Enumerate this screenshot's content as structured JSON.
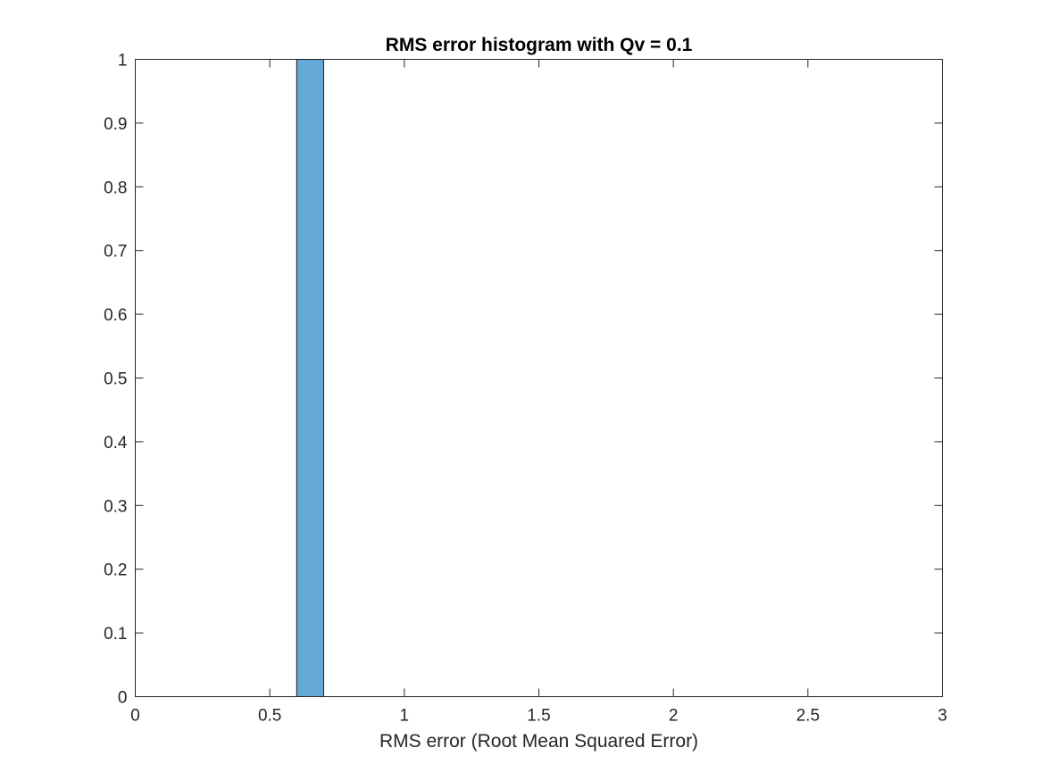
{
  "chart_data": {
    "type": "bar",
    "title": "RMS error histogram with Qv = 0.1",
    "xlabel": "RMS error (Root Mean Squared Error)",
    "ylabel": "",
    "xlim": [
      0,
      3
    ],
    "ylim": [
      0,
      1
    ],
    "xticks": [
      "0",
      "0.5",
      "1",
      "1.5",
      "2",
      "2.5",
      "3"
    ],
    "yticks": [
      "0",
      "0.1",
      "0.2",
      "0.3",
      "0.4",
      "0.5",
      "0.6",
      "0.7",
      "0.8",
      "0.9",
      "1"
    ],
    "bins": [
      {
        "x_start": 0.6,
        "x_end": 0.7,
        "value": 1
      }
    ],
    "grid": false,
    "bar_color": "#65A9D7",
    "bar_edge_color": "#1a1a1a"
  }
}
